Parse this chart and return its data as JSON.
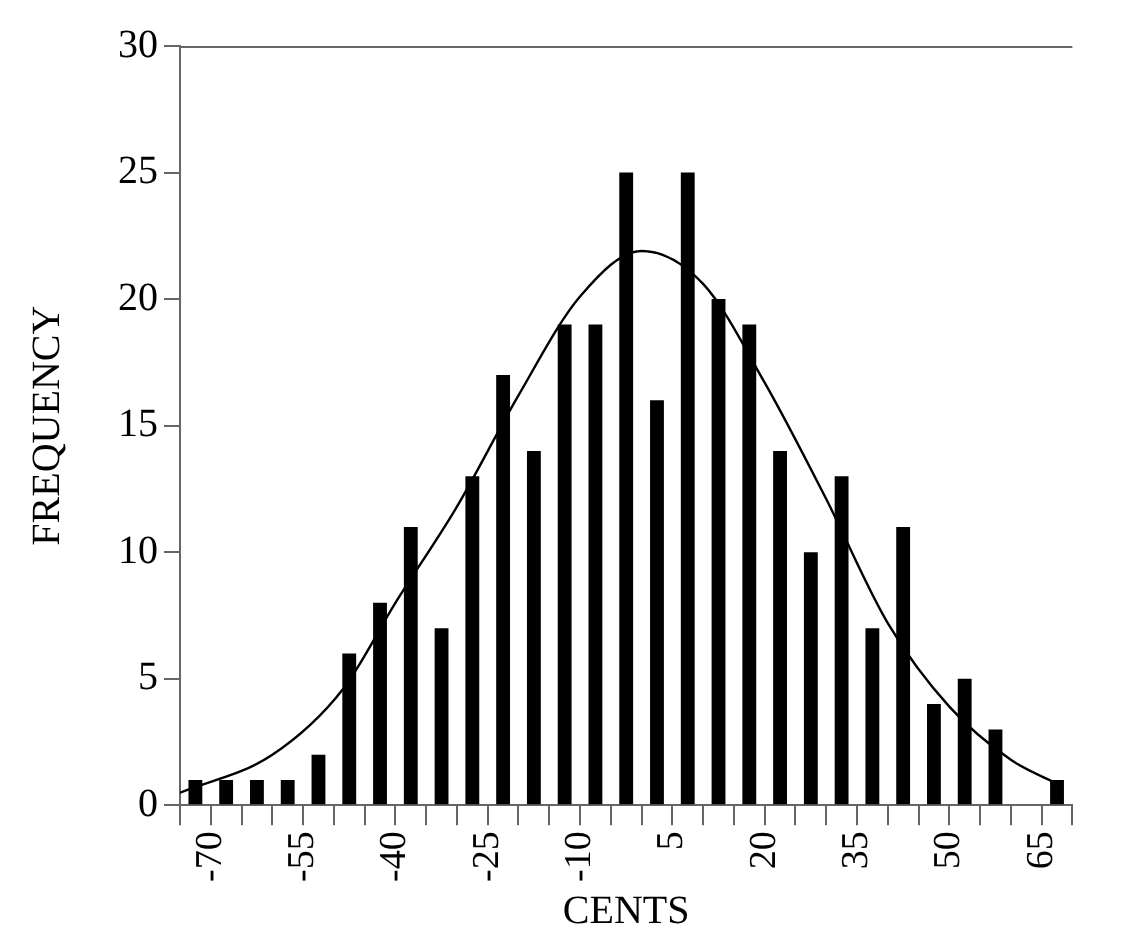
{
  "chart_data": {
    "type": "histogram",
    "xlabel": "CENTS",
    "ylabel": "FREQUENCY",
    "bins": [
      -75,
      -70,
      -65,
      -60,
      -55,
      -50,
      -45,
      -40,
      -35,
      -30,
      -25,
      -20,
      -15,
      -10,
      -5,
      0,
      5,
      10,
      15,
      20,
      25,
      30,
      35,
      40,
      45,
      50,
      55,
      60,
      65,
      70
    ],
    "series": [
      {
        "color": "#000000",
        "values": [
          1,
          1,
          1,
          1,
          2,
          6,
          8,
          11,
          7,
          13,
          17,
          14,
          19,
          19,
          25,
          16,
          25,
          20,
          19,
          14,
          10,
          13,
          7,
          11,
          4,
          5,
          3,
          0,
          1
        ]
      },
      {
        "type": "line",
        "color": "#000000",
        "marker": "none",
        "x": [
          -75,
          -60,
          -48.5,
          -40,
          -30,
          -20,
          -10,
          0,
          10,
          20,
          30,
          40,
          50,
          60,
          68
        ],
        "values": [
          0.5,
          2.0,
          4.6,
          8.0,
          11.8,
          16.2,
          20.1,
          21.9,
          20.6,
          16.7,
          12.1,
          7.2,
          3.9,
          1.8,
          0.8
        ]
      }
    ],
    "xlim": [
      -75,
      70
    ],
    "xticks": [
      {
        "value": -75,
        "label": null
      },
      -70,
      {
        "value": -65,
        "label": null
      },
      {
        "value": -60,
        "label": null
      },
      -55,
      {
        "value": -50,
        "label": null
      },
      {
        "value": -45,
        "label": null
      },
      -40,
      {
        "value": -35,
        "label": null
      },
      {
        "value": -30,
        "label": null
      },
      -25,
      {
        "value": -20,
        "label": null
      },
      {
        "value": -15,
        "label": null
      },
      -10,
      {
        "value": -5,
        "label": null
      },
      {
        "value": 0,
        "label": null
      },
      5,
      {
        "value": 10,
        "label": null
      },
      {
        "value": 15,
        "label": null
      },
      20,
      {
        "value": 25,
        "label": null
      },
      {
        "value": 30,
        "label": null
      },
      35,
      {
        "value": 40,
        "label": null
      },
      {
        "value": 45,
        "label": null
      },
      50,
      {
        "value": 55,
        "label": null
      },
      {
        "value": 60,
        "label": null
      },
      65,
      {
        "value": 70,
        "label": null
      }
    ],
    "ylim": [
      0,
      30
    ],
    "yticks": [
      0,
      5,
      10,
      15,
      20,
      25,
      30
    ],
    "grid": false,
    "legend": false
  }
}
